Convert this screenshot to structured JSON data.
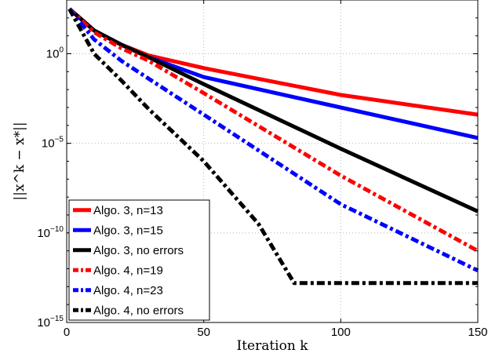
{
  "chart_data": {
    "type": "line",
    "xlabel": "Iteration k",
    "ylabel": "||x^k − x*||",
    "xlim": [
      0,
      150
    ],
    "ylim_log10": [
      -15,
      3
    ],
    "yscale": "log",
    "grid": true,
    "legend_placement": "bottom-left",
    "x_ticks": [
      "0",
      "50",
      "100",
      "150"
    ],
    "y_ticks": [
      {
        "base": "10",
        "exp": "0"
      },
      {
        "base": "10",
        "exp": "−5"
      },
      {
        "base": "10",
        "exp": "−10"
      },
      {
        "base": "10",
        "exp": "−15"
      }
    ],
    "series": [
      {
        "name": "Algo. 3, n=13",
        "color": "#ff0000",
        "style": "solid",
        "x": [
          1,
          10,
          20,
          30,
          50,
          100,
          150
        ],
        "log10_y": [
          2.5,
          1.3,
          0.5,
          -0.1,
          -0.8,
          -2.3,
          -3.4
        ]
      },
      {
        "name": "Algo. 3, n=15",
        "color": "#0000ff",
        "style": "solid",
        "x": [
          1,
          10,
          20,
          30,
          50,
          100,
          150
        ],
        "log10_y": [
          2.5,
          1.3,
          0.5,
          -0.2,
          -1.3,
          -3.0,
          -4.7
        ]
      },
      {
        "name": "Algo. 3, no errors",
        "color": "#000000",
        "style": "solid",
        "x": [
          1,
          10,
          20,
          30,
          50,
          100,
          150
        ],
        "log10_y": [
          2.5,
          1.3,
          0.5,
          -0.2,
          -1.7,
          -5.3,
          -8.8
        ]
      },
      {
        "name": "Algo. 4, n=19",
        "color": "#ff0000",
        "style": "dashdot",
        "x": [
          1,
          10,
          20,
          30,
          50,
          100,
          150
        ],
        "log10_y": [
          2.5,
          1.2,
          0.3,
          -0.4,
          -2.2,
          -6.8,
          -11.0
        ]
      },
      {
        "name": "Algo. 4, n=23",
        "color": "#0000ff",
        "style": "dashdot",
        "x": [
          1,
          10,
          20,
          30,
          50,
          100,
          150
        ],
        "log10_y": [
          2.5,
          0.8,
          -0.4,
          -1.4,
          -3.4,
          -8.4,
          -12.1
        ]
      },
      {
        "name": "Algo. 4, no errors",
        "color": "#000000",
        "style": "dashdot",
        "x": [
          1,
          10,
          20,
          30,
          50,
          70,
          83,
          100,
          150
        ],
        "log10_y": [
          2.5,
          0.0,
          -1.5,
          -3.1,
          -6.0,
          -9.5,
          -12.8,
          -12.8,
          -12.8
        ]
      }
    ]
  }
}
